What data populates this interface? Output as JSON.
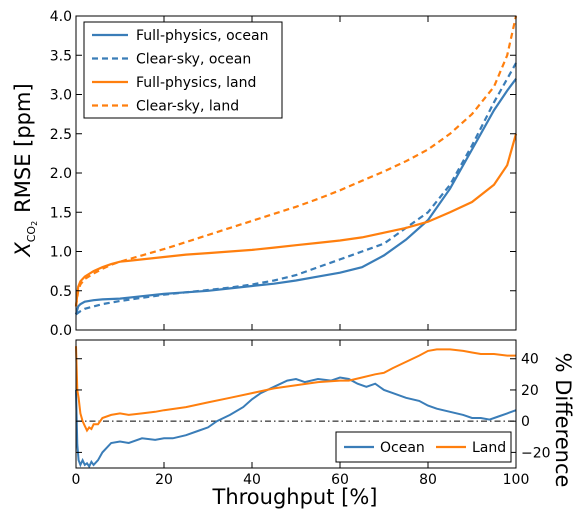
{
  "chart_data": [
    {
      "type": "line",
      "xlabel": "",
      "ylabel": "RMSE [ppm]",
      "ylabel_symbol": "X",
      "ylabel_subscript": "CO",
      "ylabel_subsub": "2",
      "xlim": [
        0,
        100
      ],
      "ylim": [
        0,
        4.0
      ],
      "yticks": [
        "0.0",
        "0.5",
        "1.0",
        "1.5",
        "2.0",
        "2.5",
        "3.0",
        "3.5",
        "4.0"
      ],
      "ytick_values": [
        0,
        0.5,
        1.0,
        1.5,
        2.0,
        2.5,
        3.0,
        3.5,
        4.0
      ],
      "grid": false,
      "legend": "top-left",
      "series": [
        {
          "name": "Full-physics, ocean",
          "color": "#3a7db8",
          "dash": "solid",
          "x": [
            0,
            0.5,
            1,
            2,
            4,
            6,
            10,
            15,
            20,
            25,
            30,
            35,
            40,
            45,
            50,
            55,
            60,
            65,
            70,
            75,
            80,
            85,
            90,
            95,
            98,
            100
          ],
          "y": [
            0.2,
            0.3,
            0.33,
            0.36,
            0.38,
            0.39,
            0.4,
            0.43,
            0.46,
            0.48,
            0.5,
            0.53,
            0.56,
            0.59,
            0.63,
            0.68,
            0.73,
            0.8,
            0.95,
            1.15,
            1.4,
            1.8,
            2.3,
            2.8,
            3.05,
            3.2
          ]
        },
        {
          "name": "Clear-sky, ocean",
          "color": "#3a7db8",
          "dash": "dashed",
          "x": [
            0,
            0.5,
            1,
            2,
            4,
            6,
            10,
            15,
            20,
            25,
            30,
            35,
            40,
            45,
            50,
            55,
            60,
            65,
            70,
            75,
            80,
            85,
            90,
            95,
            98,
            100
          ],
          "y": [
            0.2,
            0.22,
            0.24,
            0.27,
            0.3,
            0.33,
            0.37,
            0.41,
            0.45,
            0.48,
            0.51,
            0.54,
            0.58,
            0.63,
            0.7,
            0.8,
            0.9,
            1.0,
            1.1,
            1.3,
            1.5,
            1.85,
            2.35,
            2.9,
            3.2,
            3.4
          ]
        },
        {
          "name": "Full-physics, land",
          "color": "#ff7f0e",
          "dash": "solid",
          "x": [
            0,
            0.5,
            1,
            2,
            4,
            6,
            8,
            10,
            15,
            20,
            25,
            30,
            35,
            40,
            45,
            50,
            55,
            60,
            65,
            70,
            75,
            80,
            85,
            90,
            95,
            98,
            100
          ],
          "y": [
            0.3,
            0.55,
            0.62,
            0.68,
            0.75,
            0.8,
            0.84,
            0.87,
            0.9,
            0.93,
            0.96,
            0.98,
            1.0,
            1.02,
            1.05,
            1.08,
            1.11,
            1.14,
            1.18,
            1.24,
            1.3,
            1.38,
            1.5,
            1.63,
            1.85,
            2.1,
            2.5
          ]
        },
        {
          "name": "Clear-sky, land",
          "color": "#ff7f0e",
          "dash": "dashed",
          "x": [
            0,
            0.5,
            1,
            2,
            4,
            6,
            8,
            10,
            15,
            20,
            25,
            30,
            35,
            40,
            45,
            50,
            55,
            60,
            65,
            70,
            75,
            80,
            85,
            90,
            95,
            98,
            100
          ],
          "y": [
            0.3,
            0.5,
            0.58,
            0.65,
            0.72,
            0.78,
            0.83,
            0.87,
            0.95,
            1.03,
            1.12,
            1.21,
            1.3,
            1.39,
            1.48,
            1.57,
            1.67,
            1.78,
            1.9,
            2.02,
            2.15,
            2.3,
            2.5,
            2.75,
            3.1,
            3.5,
            4.0
          ]
        }
      ]
    },
    {
      "type": "line",
      "xlabel": "Throughput [%]",
      "ylabel": "% Difference",
      "ylabel_side": "right",
      "xlim": [
        0,
        100
      ],
      "ylim": [
        -30,
        52
      ],
      "xticks": [
        "0",
        "20",
        "40",
        "60",
        "80",
        "100"
      ],
      "xtick_values": [
        0,
        20,
        40,
        60,
        80,
        100
      ],
      "yticks": [
        "−20",
        "0",
        "20",
        "40"
      ],
      "ytick_values": [
        -20,
        0,
        20,
        40
      ],
      "reference_line": 0,
      "grid": false,
      "legend": "bottom-right",
      "series": [
        {
          "name": "Ocean",
          "color": "#3a7db8",
          "x": [
            0,
            0.3,
            0.6,
            1,
            1.5,
            2,
            2.5,
            3,
            3.5,
            4,
            5,
            6,
            7,
            8,
            10,
            12,
            15,
            18,
            20,
            22,
            25,
            28,
            30,
            32,
            35,
            38,
            40,
            42,
            45,
            48,
            50,
            52,
            55,
            58,
            60,
            62,
            64,
            66,
            68,
            70,
            72,
            75,
            78,
            80,
            82,
            85,
            88,
            90,
            92,
            94,
            96,
            98,
            100
          ],
          "y": [
            20,
            -15,
            -25,
            -28,
            -25,
            -28,
            -27,
            -29,
            -26,
            -28,
            -25,
            -20,
            -17,
            -14,
            -13,
            -14,
            -11,
            -12,
            -11,
            -11,
            -9,
            -6,
            -4,
            0,
            4,
            9,
            14,
            18,
            22,
            26,
            27,
            25,
            27,
            26,
            28,
            27,
            24,
            22,
            24,
            20,
            18,
            15,
            13,
            10,
            8,
            6,
            4,
            2,
            2,
            1,
            3,
            5,
            7
          ]
        },
        {
          "name": "Land",
          "color": "#ff7f0e",
          "x": [
            0,
            0.3,
            0.6,
            1,
            1.5,
            2,
            2.5,
            3,
            3.5,
            4,
            5,
            6,
            8,
            10,
            12,
            15,
            18,
            20,
            25,
            30,
            35,
            40,
            45,
            50,
            55,
            60,
            62,
            65,
            68,
            70,
            72,
            75,
            78,
            80,
            82,
            85,
            88,
            90,
            92,
            95,
            98,
            100
          ],
          "y": [
            48,
            20,
            15,
            5,
            0,
            -3,
            -6,
            -4,
            -5,
            -2,
            -2,
            2,
            4,
            5,
            4,
            5,
            6,
            7,
            9,
            12,
            15,
            18,
            21,
            23,
            25,
            26,
            26,
            28,
            30,
            31,
            34,
            38,
            42,
            45,
            46,
            46,
            45,
            44,
            43,
            43,
            42,
            42
          ]
        }
      ]
    }
  ]
}
